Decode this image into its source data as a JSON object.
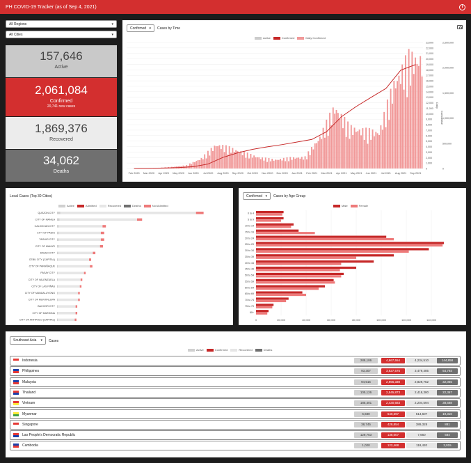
{
  "app": {
    "title": "PH COVID-19 Tracker (as of Sep 4, 2021)",
    "info_icon": "info-icon"
  },
  "filters": {
    "region": "All Regions",
    "city": "All Cities"
  },
  "stats": {
    "active": {
      "value": "157,646",
      "label": "Active"
    },
    "confirmed": {
      "value": "2,061,084",
      "label": "Confirmed",
      "sub": "20,741 new cases"
    },
    "recovered": {
      "value": "1,869,376",
      "label": "Recovered"
    },
    "deaths": {
      "value": "34,062",
      "label": "Deaths"
    }
  },
  "time_chart": {
    "selector": "Confirmed",
    "title": "Cases by Time",
    "legend": [
      "Active",
      "Confirmed",
      "Daily Confirmed"
    ],
    "y_left_label": "Daily",
    "y_right_label": "Cumulative",
    "colors": {
      "daily": "#f19999",
      "cumulative": "#c62828",
      "active": "#cccccc"
    }
  },
  "cities_chart": {
    "title": "Local Cases (Top 30 Cities)",
    "legend": [
      "Active",
      "Admitted",
      "Recovered",
      "Deaths",
      "Not Admitted"
    ]
  },
  "age_chart": {
    "selector": "Confirmed",
    "title": "Cases by Age Group",
    "legend": [
      "Male",
      "Female"
    ]
  },
  "sea": {
    "selector": "Southeast Asia",
    "title": "Cases",
    "legend": [
      "Active",
      "Confirmed",
      "Recovered",
      "Deaths"
    ],
    "rows": [
      {
        "country": "Indonesia",
        "active": "288,106",
        "confirmed": "4,667,554",
        "recovered": "4,234,510",
        "deaths": "144,858"
      },
      {
        "country": "Philippines",
        "active": "93,307",
        "confirmed": "3,627,575",
        "recovered": "3,479,485",
        "deaths": "54,793"
      },
      {
        "country": "Malaysia",
        "active": "94,515",
        "confirmed": "2,956,330",
        "recovered": "2,829,752",
        "deaths": "32,065"
      },
      {
        "country": "Thailand",
        "active": "105,126",
        "confirmed": "2,545,873",
        "recovered": "2,418,380",
        "deaths": "22,367"
      },
      {
        "country": "Vietnam",
        "active": "185,401",
        "confirmed": "2,430,683",
        "recovered": "2,204,594",
        "deaths": "38,688"
      },
      {
        "country": "Myanmar",
        "active": "6,680",
        "confirmed": "540,597",
        "recovered": "514,607",
        "deaths": "19,310"
      },
      {
        "country": "Singapore",
        "active": "38,745",
        "confirmed": "428,854",
        "recovered": "389,328",
        "deaths": "881"
      },
      {
        "country": "Lao People's Democratic Republic",
        "active": "129,763",
        "confirmed": "138,007",
        "recovered": "7,660",
        "deaths": "584"
      },
      {
        "country": "Cambodia",
        "active": "1,020",
        "confirmed": "122,468",
        "recovered": "118,420",
        "deaths": "3,015"
      }
    ]
  },
  "chart_data": [
    {
      "type": "bar",
      "title": "Cases by Time",
      "x_ticks": [
        "Feb 2020",
        "Mar 2020",
        "Apr 2020",
        "May 2020",
        "Jun 2020",
        "Jul 2020",
        "Aug 2020",
        "Sep 2020",
        "Oct 2020",
        "Nov 2020",
        "Dec 2020",
        "Jan 2021",
        "Feb 2021",
        "Mar 2021",
        "Apr 2021",
        "May 2021",
        "Jun 2021",
        "Jul 2021",
        "Aug 2021",
        "Sep 2021"
      ],
      "y_left_ticks": [
        "0",
        "1,000",
        "2,000",
        "3,000",
        "4,000",
        "5,000",
        "6,000",
        "7,000",
        "8,000",
        "9,000",
        "10,000",
        "11,000",
        "12,000",
        "13,000",
        "14,000",
        "15,000",
        "16,000",
        "17,000",
        "18,000",
        "19,000",
        "20,000",
        "21,000",
        "22,000",
        "23,000"
      ],
      "y_right_ticks": [
        "0",
        "500,000",
        "1,000,000",
        "1,500,000",
        "2,000,000",
        "2,500,000"
      ],
      "ylim": [
        0,
        23000
      ],
      "y2lim": [
        0,
        2500000
      ],
      "series": [
        {
          "name": "Daily Confirmed",
          "type": "bar",
          "monthly_avg": [
            0,
            5,
            100,
            250,
            500,
            1600,
            3800,
            3200,
            2400,
            1700,
            1400,
            1700,
            1800,
            5000,
            9800,
            6500,
            6000,
            5800,
            13500,
            17500
          ]
        },
        {
          "name": "Confirmed",
          "type": "line",
          "x": [
            "Feb 2020",
            "Mar 2020",
            "Apr 2020",
            "May 2020",
            "Jun 2020",
            "Jul 2020",
            "Aug 2020",
            "Sep 2020",
            "Oct 2020",
            "Nov 2020",
            "Dec 2020",
            "Jan 2021",
            "Feb 2021",
            "Mar 2021",
            "Apr 2021",
            "May 2021",
            "Jun 2021",
            "Jul 2021",
            "Aug 2021",
            "Sep 2021"
          ],
          "values": [
            3,
            2000,
            8500,
            18000,
            37000,
            89000,
            220000,
            311000,
            380000,
            430000,
            474000,
            525000,
            576000,
            731000,
            1028000,
            1231000,
            1412000,
            1588000,
            1950000,
            2061084
          ]
        }
      ]
    },
    {
      "type": "bar",
      "title": "Local Cases (Top 30 Cities)",
      "categories": [
        "QUEZON CITY",
        "CITY OF MANILA",
        "CALOOCAN CITY",
        "CITY OF PASIG",
        "TAGUIG CITY",
        "CITY OF MAKATI",
        "DAVAO CITY",
        "CEBU CITY (CAPITAL)",
        "CITY OF PARAÑAQUE",
        "PASAY CITY",
        "CITY OF VALENZUELA",
        "CITY OF LAS PIÑAS",
        "CITY OF MANDALUYONG",
        "CITY OF MUNTINLUPA",
        "BACOOR CITY",
        "CITY OF MARIKINA",
        "CITY OF ANTIPOLO (CAPITAL)"
      ],
      "series": [
        {
          "name": "Recovered",
          "values": [
            161000,
            92000,
            52000,
            50000,
            50000,
            49000,
            41000,
            37000,
            38000,
            31000,
            27000,
            26000,
            24000,
            24000,
            21000,
            21000,
            20000
          ]
        },
        {
          "name": "Active",
          "values": [
            4000,
            3000,
            2000,
            2000,
            2000,
            2000,
            1500,
            1000,
            1000,
            1000,
            1000,
            1000,
            1000,
            1000,
            1000,
            1000,
            1000
          ]
        },
        {
          "name": "Not Admitted",
          "values": [
            9000,
            6000,
            4000,
            4000,
            4000,
            3500,
            3000,
            2500,
            3000,
            2000,
            2000,
            2000,
            2000,
            2000,
            2000,
            2000,
            2000
          ]
        }
      ]
    },
    {
      "type": "bar",
      "title": "Cases by Age Group",
      "categories": [
        "0 to 4",
        "5 to 9",
        "10 to 14",
        "15 to 19",
        "20 to 24",
        "25 to 29",
        "30 to 34",
        "35 to 39",
        "40 to 44",
        "45 to 49",
        "50 to 54",
        "55 to 59",
        "60 to 64",
        "65 to 69",
        "70 to 74",
        "75 to 79",
        "80+"
      ],
      "x_ticks": [
        "0",
        "20,000",
        "40,000",
        "60,000",
        "80,000",
        "100,000",
        "120,000",
        "140,000"
      ],
      "xlim": [
        0,
        160000
      ],
      "series": [
        {
          "name": "Male",
          "values": [
            22000,
            22000,
            30000,
            34000,
            104000,
            150000,
            138000,
            110000,
            94000,
            80000,
            70000,
            62000,
            55000,
            37000,
            26000,
            14000,
            10000
          ]
        },
        {
          "name": "Female",
          "values": [
            21000,
            20000,
            28000,
            47000,
            110000,
            149000,
            122000,
            80000,
            68000,
            67000,
            68000,
            63000,
            50000,
            40000,
            24000,
            13000,
            9000
          ]
        }
      ]
    }
  ]
}
